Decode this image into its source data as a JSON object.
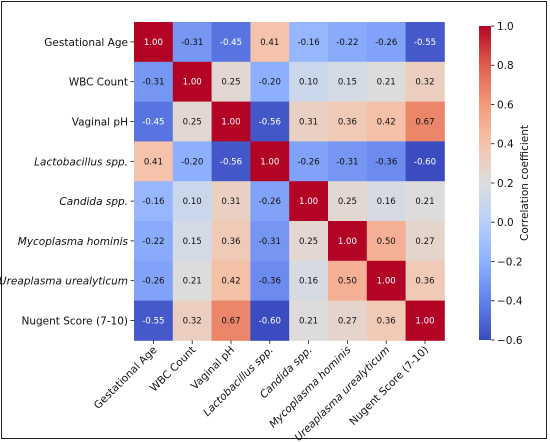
{
  "chart_data": {
    "type": "heatmap",
    "labels": [
      "Gestational Age",
      "WBC Count",
      "Vaginal pH",
      "Lactobacillus spp.",
      "Candida spp.",
      "Mycoplasma hominis",
      "Ureaplasma urealyticum",
      "Nugent Score (7-10)"
    ],
    "italic_labels": [
      false,
      false,
      false,
      true,
      true,
      true,
      true,
      false
    ],
    "matrix": [
      [
        1.0,
        -0.31,
        -0.45,
        0.41,
        -0.16,
        -0.22,
        -0.26,
        -0.55
      ],
      [
        -0.31,
        1.0,
        0.25,
        -0.2,
        0.1,
        0.15,
        0.21,
        0.32
      ],
      [
        -0.45,
        0.25,
        1.0,
        -0.56,
        0.31,
        0.36,
        0.42,
        0.67
      ],
      [
        0.41,
        -0.2,
        -0.56,
        1.0,
        -0.26,
        -0.31,
        -0.36,
        -0.6
      ],
      [
        -0.16,
        0.1,
        0.31,
        -0.26,
        1.0,
        0.25,
        0.16,
        0.21
      ],
      [
        -0.22,
        0.15,
        0.36,
        -0.31,
        0.25,
        1.0,
        0.5,
        0.27
      ],
      [
        -0.26,
        0.21,
        0.42,
        -0.36,
        0.16,
        0.5,
        1.0,
        0.36
      ],
      [
        -0.55,
        0.32,
        0.67,
        -0.6,
        0.21,
        0.27,
        0.36,
        1.0
      ]
    ],
    "colorbar": {
      "label": "Correlation coefficient",
      "range": [
        -0.6,
        1.0
      ],
      "ticks": [
        1.0,
        0.8,
        0.6,
        0.4,
        0.2,
        0.0,
        -0.2,
        -0.4,
        -0.6
      ],
      "tick_labels": [
        "1.0",
        "0.8",
        "0.6",
        "0.4",
        "0.2",
        "0.0",
        "−0.2",
        "−0.4",
        "−0.6"
      ],
      "colormap": "coolwarm"
    }
  }
}
